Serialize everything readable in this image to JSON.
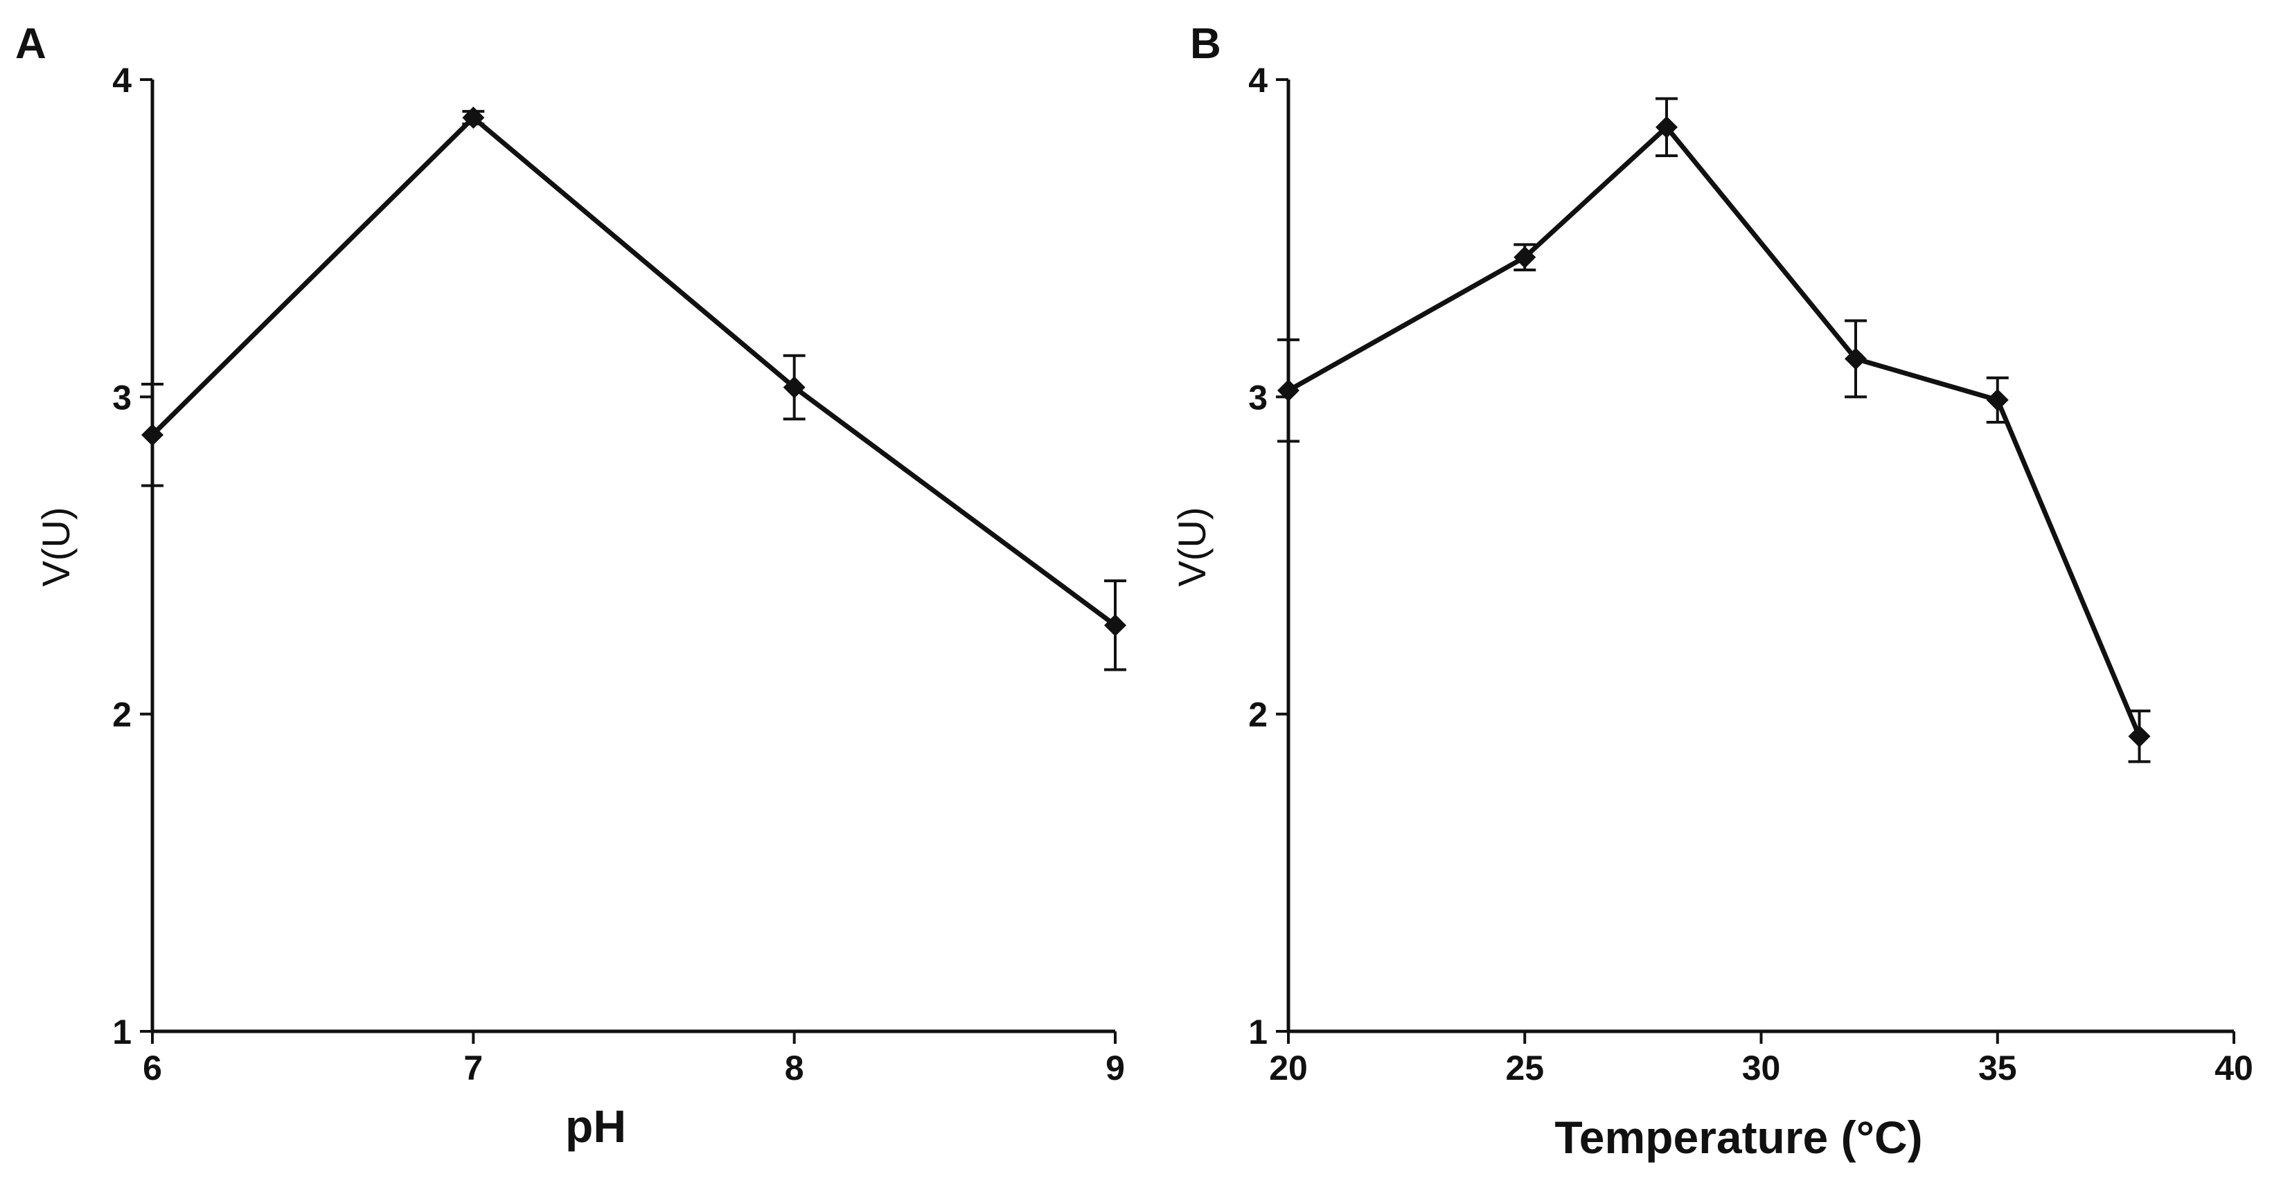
{
  "chart_data": [
    {
      "type": "line",
      "panel": "A",
      "title": "",
      "xlabel": "pH",
      "ylabel": "V(U)",
      "x": [
        6,
        7,
        8,
        9
      ],
      "y": [
        2.88,
        3.88,
        3.03,
        2.28
      ],
      "yerr": [
        0.16,
        0.02,
        0.1,
        0.14
      ],
      "xlim": [
        6,
        9
      ],
      "ylim": [
        1,
        4
      ],
      "xticks": [
        "6",
        "7",
        "8",
        "9"
      ],
      "yticks": [
        "1",
        "2",
        "3",
        "4"
      ],
      "grid": false,
      "marker": "diamond",
      "color": "#111111"
    },
    {
      "type": "line",
      "panel": "B",
      "title": "",
      "xlabel": "Temperature (°C)",
      "ylabel": "V(U)",
      "x": [
        20,
        25,
        28,
        32,
        35,
        38
      ],
      "y": [
        3.02,
        3.44,
        3.85,
        3.12,
        2.99,
        1.93
      ],
      "yerr": [
        0.16,
        0.04,
        0.09,
        0.12,
        0.07,
        0.08
      ],
      "xlim": [
        20,
        40
      ],
      "ylim": [
        1,
        4
      ],
      "xticks": [
        "20",
        "25",
        "30",
        "35",
        "40"
      ],
      "yticks": [
        "1",
        "2",
        "3",
        "4"
      ],
      "grid": false,
      "marker": "diamond",
      "color": "#111111"
    }
  ]
}
